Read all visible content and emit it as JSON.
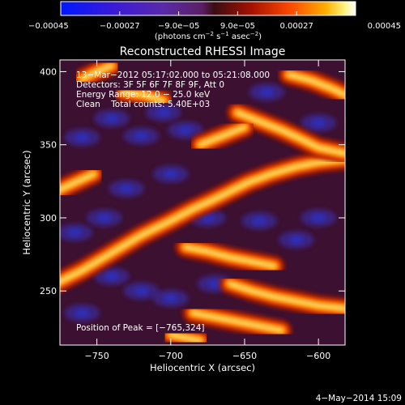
{
  "chart_data": {
    "type": "heatmap",
    "title": "Reconstructed RHESSI Image",
    "xlabel": "Heliocentric X (arcsec)",
    "ylabel": "Heliocentric Y (arcsec)",
    "xlim": [
      -775,
      -582
    ],
    "ylim": [
      213,
      408
    ],
    "xticks": [
      -750,
      -700,
      -650,
      -600
    ],
    "xtick_labels": [
      "−750",
      "−700",
      "−650",
      "−600"
    ],
    "yticks": [
      250,
      300,
      350,
      400
    ],
    "ytick_labels": [
      "250",
      "300",
      "350",
      "400"
    ],
    "colorbar": {
      "range": [
        -0.00045,
        0.00045
      ],
      "ticks": [
        -0.00045,
        -0.00027,
        -9e-05,
        9e-05,
        0.00027,
        0.00045
      ],
      "tick_labels": [
        "−0.00045",
        "−0.00027",
        "−9.0e−05",
        "9.0e−05",
        "0.00027",
        "0.00045"
      ],
      "units_prefix": "(photons cm",
      "units_exp1": "−2",
      "units_mid1": " s",
      "units_exp2": "−1",
      "units_mid2": " asec",
      "units_exp3": "−2",
      "units_suffix": ")",
      "colormap": "blue-purple-red-orange-yellow-white"
    },
    "annotations": [
      "13−Mar−2012 05:17:02.000 to 05:21:08.000",
      "Detectors: 3F 5F 6F 7F 8F 9F, Att 0",
      "Energy Range: 12.0 − 25.0 keV",
      "Clean    Total counts: 5.40E+03"
    ],
    "peak_label": "Position of Peak = [−765,324]",
    "peak": [
      -765,
      324
    ],
    "bright_ridges": [
      {
        "x": [
          -778,
          -760,
          -740,
          -720,
          -700,
          -685,
          -672,
          -660,
          -648,
          -632,
          -615,
          -600,
          -582
        ],
        "y": [
          255,
          264,
          276,
          288,
          298,
          306,
          312,
          318,
          324,
          330,
          335,
          338,
          340
        ]
      },
      {
        "x": [
          -778,
          -765,
          -752
        ],
        "y": [
          318,
          324,
          330
        ]
      },
      {
        "x": [
          -732,
          -718,
          -705
        ],
        "y": [
          386,
          384,
          380
        ]
      },
      {
        "x": [
          -690,
          -675,
          -660,
          -645,
          -630
        ],
        "y": [
          280,
          277,
          273,
          270,
          267
        ]
      },
      {
        "x": [
          -660,
          -645,
          -630,
          -615,
          -600,
          -582
        ],
        "y": [
          255,
          250,
          246,
          243,
          240,
          238
        ]
      },
      {
        "x": [
          -685,
          -670,
          -655,
          -640,
          -625
        ],
        "y": [
          235,
          232,
          229,
          226,
          223
        ]
      },
      {
        "x": [
          -655,
          -640,
          -625,
          -612,
          -600,
          -582
        ],
        "y": [
          372,
          366,
          360,
          354,
          348,
          344
        ]
      },
      {
        "x": [
          -680,
          -665,
          -650
        ],
        "y": [
          350,
          356,
          362
        ]
      },
      {
        "x": [
          -620,
          -605,
          -590,
          -582
        ],
        "y": [
          398,
          394,
          388,
          384
        ]
      },
      {
        "x": [
          -700,
          -690,
          -680
        ],
        "y": [
          220,
          218,
          216
        ]
      },
      {
        "x": [
          -760,
          -750,
          -740
        ],
        "y": [
          395,
          400,
          404
        ]
      }
    ],
    "dark_lobes": [
      {
        "x": -760,
        "y": 355
      },
      {
        "x": -740,
        "y": 368
      },
      {
        "x": -720,
        "y": 356
      },
      {
        "x": -705,
        "y": 372
      },
      {
        "x": -690,
        "y": 360
      },
      {
        "x": -765,
        "y": 290
      },
      {
        "x": -745,
        "y": 300
      },
      {
        "x": -730,
        "y": 320
      },
      {
        "x": -700,
        "y": 330
      },
      {
        "x": -675,
        "y": 300
      },
      {
        "x": -640,
        "y": 298
      },
      {
        "x": -615,
        "y": 285
      },
      {
        "x": -600,
        "y": 300
      },
      {
        "x": -740,
        "y": 260
      },
      {
        "x": -720,
        "y": 250
      },
      {
        "x": -700,
        "y": 245
      },
      {
        "x": -670,
        "y": 255
      },
      {
        "x": -760,
        "y": 235
      },
      {
        "x": -635,
        "y": 386
      },
      {
        "x": -600,
        "y": 365
      }
    ]
  },
  "footer": {
    "date": "4−May−2014 15:09"
  }
}
